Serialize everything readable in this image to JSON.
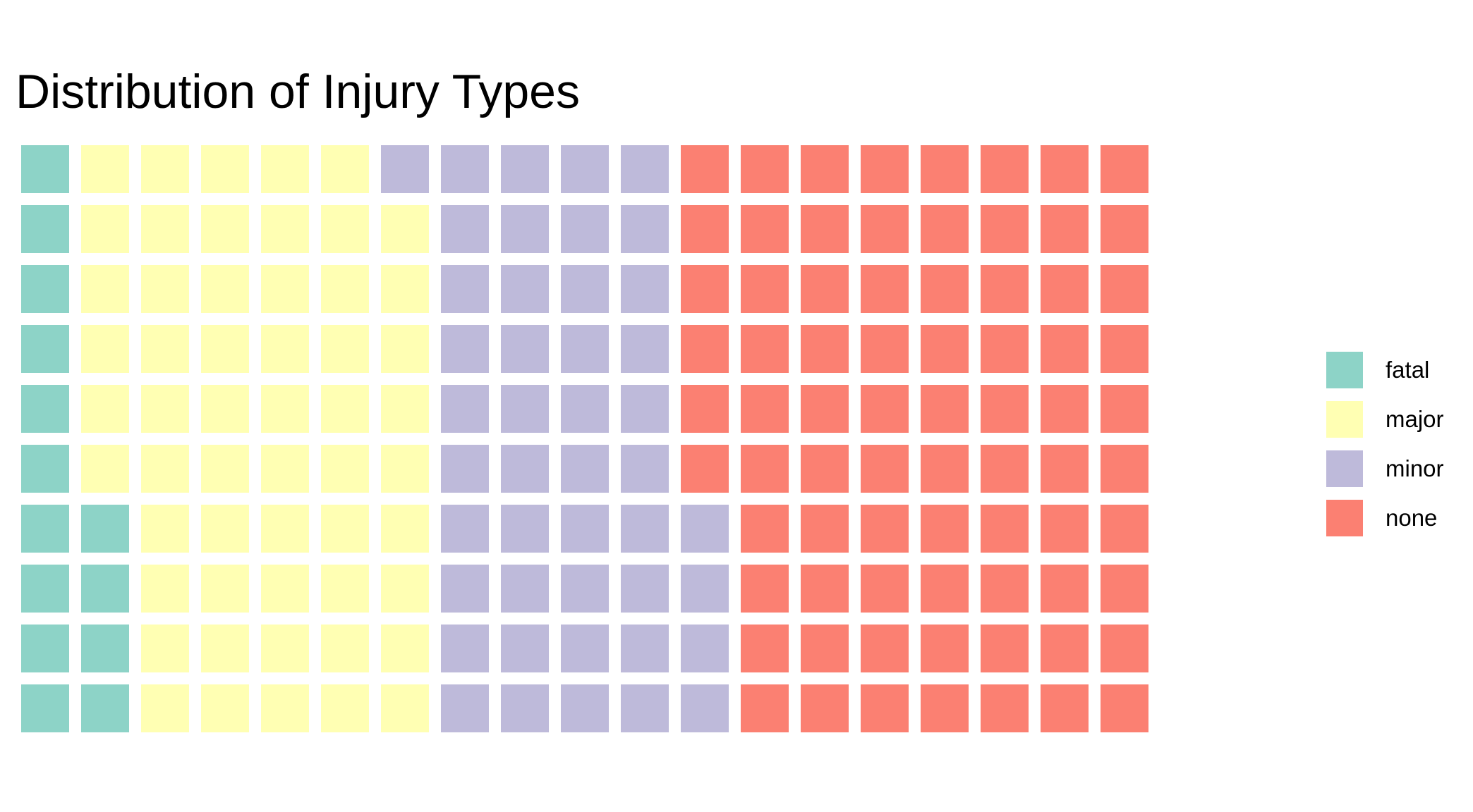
{
  "chart_data": {
    "type": "waffle",
    "title": "Distribution of Injury Types",
    "series": [
      {
        "name": "fatal",
        "value": 14,
        "color": "#8DD3C7"
      },
      {
        "name": "major",
        "value": 55,
        "color": "#FFFFB3"
      },
      {
        "name": "minor",
        "value": 45,
        "color": "#BEBADA"
      },
      {
        "name": "none",
        "value": 76,
        "color": "#FB8072"
      }
    ],
    "rows": 10,
    "fill_order": "column-wise from bottom",
    "grid": false,
    "legend_position": "right"
  }
}
